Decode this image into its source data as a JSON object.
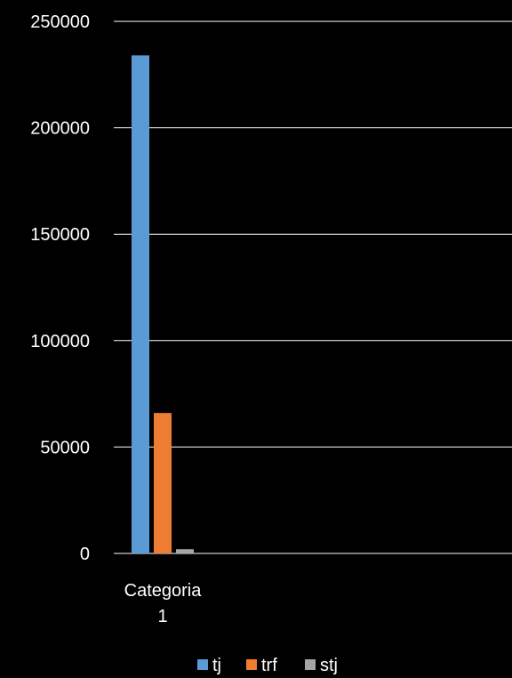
{
  "chart_data": {
    "type": "bar",
    "categories": [
      "Categoria 1"
    ],
    "category_label_lines": [
      [
        "Categoria",
        "1"
      ]
    ],
    "series": [
      {
        "name": "tj",
        "values": [
          234000
        ],
        "color": "#5b9bd5"
      },
      {
        "name": "trf",
        "values": [
          66000
        ],
        "color": "#ed7d31"
      },
      {
        "name": "stj",
        "values": [
          2000
        ],
        "color": "#a5a5a5"
      }
    ],
    "ylim": [
      0,
      250000
    ],
    "yticks": [
      "0",
      "50000",
      "100000",
      "150000",
      "200000",
      "250000"
    ],
    "grid": true,
    "legend": "bottom",
    "background": "#000000",
    "gridline_color": "#ffffff",
    "text_color": "#ffffff"
  }
}
